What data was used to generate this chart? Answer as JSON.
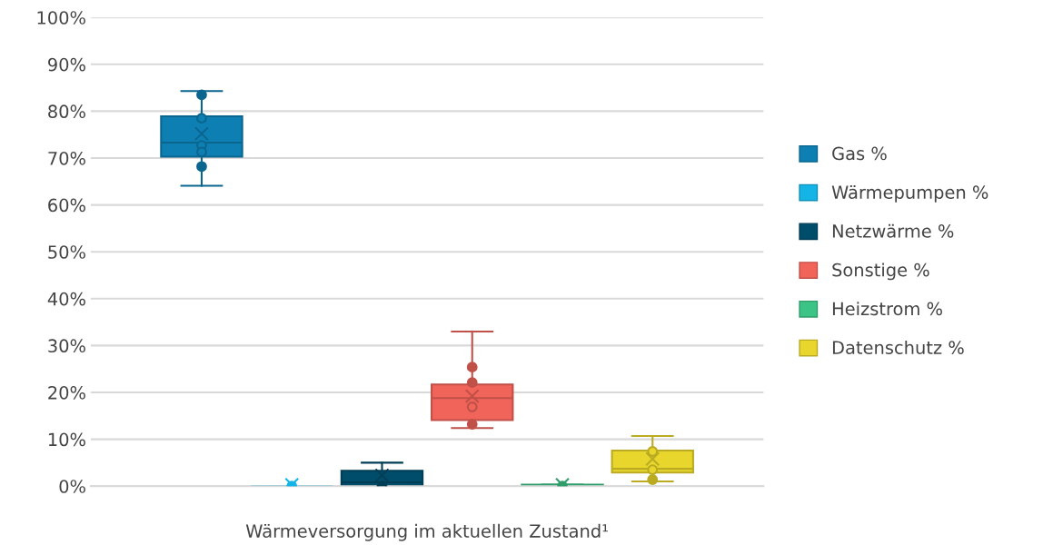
{
  "chart_data": {
    "type": "box",
    "categories": [
      "Wärmeversorgung im aktuellen Zustand¹"
    ],
    "ylim": [
      0,
      100
    ],
    "yticks": [
      {
        "value": 0,
        "label": "0%"
      },
      {
        "value": 10,
        "label": "10%"
      },
      {
        "value": 20,
        "label": "20%"
      },
      {
        "value": 30,
        "label": "30%"
      },
      {
        "value": 40,
        "label": "40%"
      },
      {
        "value": 50,
        "label": "50%"
      },
      {
        "value": 60,
        "label": "60%"
      },
      {
        "value": 70,
        "label": "70%"
      },
      {
        "value": 80,
        "label": "80%"
      },
      {
        "value": 90,
        "label": "90%"
      },
      {
        "value": 100,
        "label": "100%"
      }
    ],
    "grid": "y",
    "legend": "right",
    "series": [
      {
        "name": "Gas %",
        "color": "#0e7fb3",
        "boxes": [
          {
            "low": 64.1,
            "q1": 70.3,
            "median": 73.3,
            "q3": 78.9,
            "high": 84.3,
            "mean": 75.2,
            "outliers": [
              83.5,
              78.5,
              72.7,
              71.3,
              68.2
            ]
          }
        ]
      },
      {
        "name": "Wärmepumpen %",
        "color": "#14b4e6",
        "boxes": [
          {
            "low": 0,
            "q1": 0,
            "median": 0,
            "q3": 0,
            "high": 0,
            "mean": 0.3,
            "outliers": [
              0
            ]
          }
        ]
      },
      {
        "name": "Netzwärme %",
        "color": "#004d6b",
        "boxes": [
          {
            "low": 0,
            "q1": 0,
            "median": 0.8,
            "q3": 3.3,
            "high": 5.0,
            "mean": 2.3,
            "outliers": [
              0
            ]
          }
        ]
      },
      {
        "name": "Sonstige %",
        "color": "#f0645a",
        "boxes": [
          {
            "low": 12.4,
            "q1": 14.1,
            "median": 18.8,
            "q3": 21.7,
            "high": 33.0,
            "mean": 19.2,
            "outliers": [
              25.4,
              22.1,
              16.9,
              13.2
            ]
          }
        ]
      },
      {
        "name": "Heizstrom %",
        "color": "#3cc486",
        "boxes": [
          {
            "low": 0,
            "q1": 0,
            "median": 0,
            "q3": 0.3,
            "high": 0.3,
            "mean": 0.3,
            "outliers": [
              0
            ]
          }
        ]
      },
      {
        "name": "Datenschutz %",
        "color": "#e8d62c",
        "boxes": [
          {
            "low": 1.0,
            "q1": 2.9,
            "median": 3.7,
            "q3": 7.6,
            "high": 10.7,
            "mean": 5.8,
            "outliers": [
              7.4,
              3.5,
              1.4
            ]
          }
        ]
      }
    ]
  }
}
